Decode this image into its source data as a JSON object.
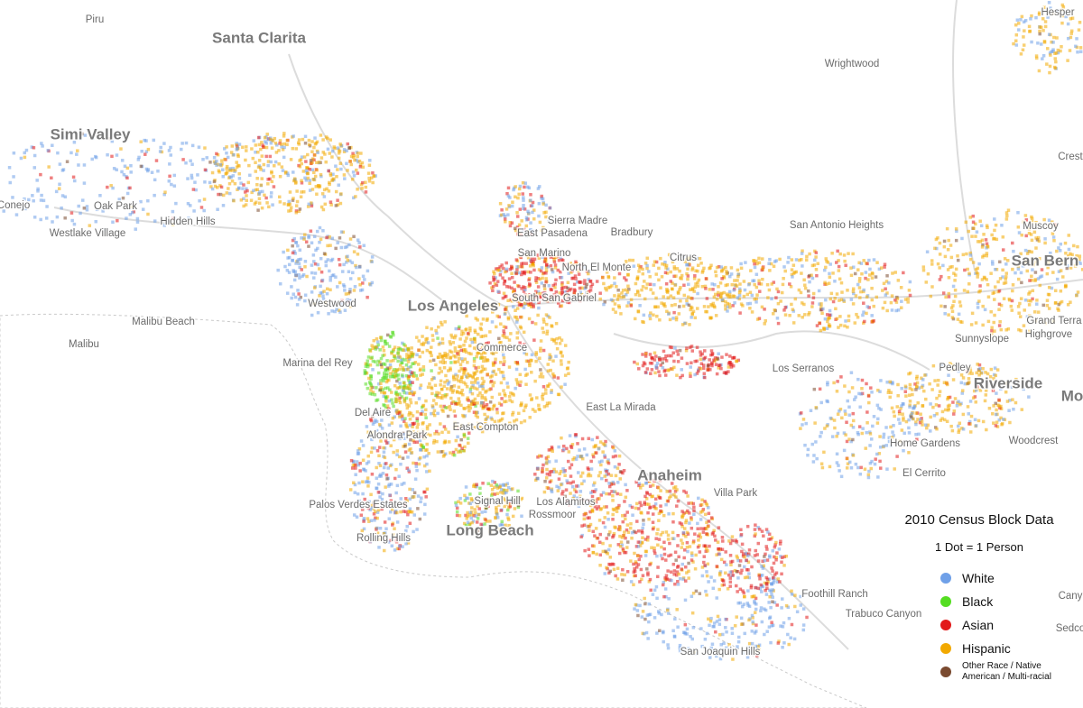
{
  "map": {
    "places": [
      "Piru",
      "Santa Clarita",
      "Wrightwood",
      "Simi Valley",
      "Conejo",
      "Oak Park",
      "Hidden Hills",
      "Westlake Village",
      "Sierra Madre",
      "East Pasadena",
      "Bradbury",
      "San Antonio Heights",
      "Muscoy",
      "San Marino",
      "San Bern",
      "Citrus",
      "North El Monte",
      "Westwood",
      "South San Gabriel",
      "Los Angeles",
      "Malibu Beach",
      "Grand Terra",
      "Highgrove",
      "Malibu",
      "Commerce",
      "Sunnyslope",
      "Marina del Rey",
      "Los Serranos",
      "Pedley",
      "Riverside",
      "Del Aire",
      "East La Mirada",
      "East Compton",
      "Alondra Park",
      "Home Gardens",
      "Woodcrest",
      "Anaheim",
      "El Cerrito",
      "Villa Park",
      "Palos Verdes Estates",
      "Signal Hill",
      "Los Alamitos",
      "Rossmoor",
      "Long Beach",
      "Rolling Hills",
      "Foothill Ranch",
      "Trabuco Canyon",
      "San Joaquin Hills",
      "Crest",
      "Hesper",
      "Mo",
      "Cany",
      "Sedco"
    ]
  },
  "legend": {
    "title": "2010 Census Block Data",
    "subtitle": "1 Dot = 1 Person",
    "items": [
      {
        "label": "White",
        "color": "#6fa0e8"
      },
      {
        "label": "Black",
        "color": "#55dd22"
      },
      {
        "label": "Asian",
        "color": "#e21a1a"
      },
      {
        "label": "Hispanic",
        "color": "#f2a900"
      },
      {
        "label": "Other Race / Native American / Multi-racial",
        "color": "#7a4a30"
      }
    ]
  }
}
